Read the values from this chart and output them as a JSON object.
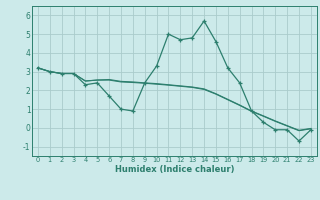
{
  "title": "",
  "xlabel": "Humidex (Indice chaleur)",
  "ylabel": "",
  "background_color": "#cceaea",
  "grid_color": "#aacccc",
  "line_color": "#2d7f6e",
  "xlim": [
    -0.5,
    23.5
  ],
  "ylim": [
    -1.5,
    6.5
  ],
  "xticks": [
    0,
    1,
    2,
    3,
    4,
    5,
    6,
    7,
    8,
    9,
    10,
    11,
    12,
    13,
    14,
    15,
    16,
    17,
    18,
    19,
    20,
    21,
    22,
    23
  ],
  "yticks": [
    -1,
    0,
    1,
    2,
    3,
    4,
    5,
    6
  ],
  "series_main": [
    3.2,
    3.0,
    2.9,
    2.9,
    2.3,
    2.4,
    1.7,
    1.0,
    0.9,
    2.4,
    3.3,
    5.0,
    4.7,
    4.8,
    5.7,
    4.6,
    3.2,
    2.4,
    0.9,
    0.3,
    -0.1,
    -0.1,
    -0.7,
    -0.1
  ],
  "series_trend1": [
    3.2,
    3.0,
    2.9,
    2.9,
    2.5,
    2.55,
    2.55,
    2.45,
    2.42,
    2.38,
    2.33,
    2.28,
    2.22,
    2.16,
    2.05,
    1.8,
    1.5,
    1.2,
    0.88,
    0.62,
    0.35,
    0.1,
    -0.15,
    -0.05
  ],
  "series_trend2": [
    3.2,
    3.0,
    2.9,
    2.9,
    2.5,
    2.55,
    2.58,
    2.48,
    2.45,
    2.4,
    2.36,
    2.3,
    2.24,
    2.18,
    2.08,
    1.82,
    1.52,
    1.22,
    0.9,
    0.64,
    0.37,
    0.12,
    -0.13,
    -0.03
  ]
}
